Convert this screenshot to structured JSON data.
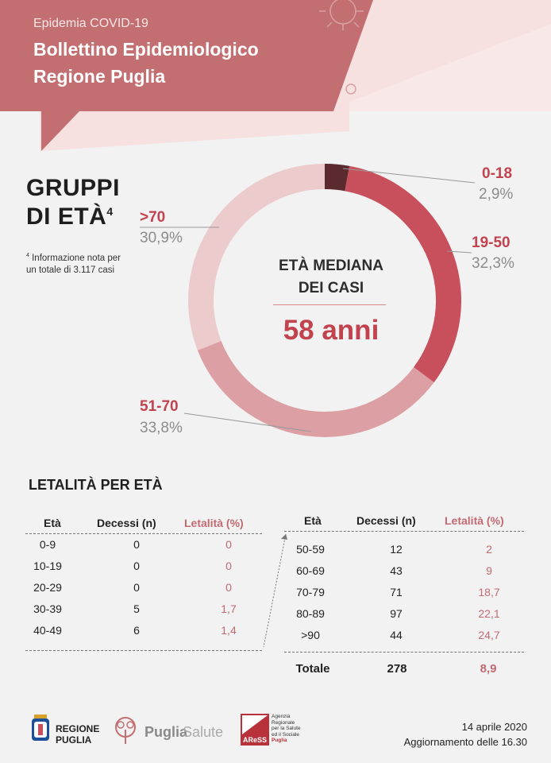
{
  "header": {
    "supertitle": "Epidemia COVID-19",
    "title_line1": "Bollettino Epidemiologico",
    "title_line2": "Regione Puglia"
  },
  "groups_title": {
    "line1": "GRUPPI",
    "line2": "DI ETÀ",
    "footnote_mark": "4"
  },
  "note": {
    "mark": "4",
    "text1": "Informazione nota per",
    "text2": "un totale di  3.117   casi"
  },
  "center": {
    "line1": "ETÀ MEDIANA",
    "line2": "DEI CASI",
    "value": "58 anni"
  },
  "chart_data": {
    "type": "pie",
    "categories": [
      "0-18",
      "19-50",
      "51-70",
      ">70"
    ],
    "values": [
      2.9,
      32.3,
      33.8,
      30.9
    ],
    "labels": [
      "2,9%",
      "32,3%",
      "33,8%",
      "30,9%"
    ],
    "colors": [
      "#5b2a2e",
      "#c8505c",
      "#dca0a4",
      "#eccbcd"
    ]
  },
  "lethality": {
    "title": "LETALITÀ PER ETÀ",
    "headers": [
      "Età",
      "Decessi (n)",
      "Letalità (%)"
    ],
    "left_rows": [
      [
        "0-9",
        "0",
        "0"
      ],
      [
        "10-19",
        "0",
        "0"
      ],
      [
        "20-29",
        "0",
        "0"
      ],
      [
        "30-39",
        "5",
        "1,7"
      ],
      [
        "40-49",
        "6",
        "1,4"
      ]
    ],
    "right_rows": [
      [
        "50-59",
        "12",
        "2"
      ],
      [
        "60-69",
        "43",
        "9"
      ],
      [
        "70-79",
        "71",
        "18,7"
      ],
      [
        "80-89",
        "97",
        "22,1"
      ],
      [
        ">90",
        "44",
        "24,7"
      ]
    ],
    "total": [
      "Totale",
      "278",
      "8,9"
    ]
  },
  "footer": {
    "regione1": "REGIONE",
    "regione2": "PUGLIA",
    "puglia": "Puglia",
    "salute": "Salute",
    "ares_logo": "AReSS",
    "ares_text": [
      "Agenzia",
      "Regionale",
      "per la Salute",
      "ed il Sociale",
      "Puglia"
    ],
    "date": "14 aprile 2020",
    "update": "Aggiornamento delle 16.30"
  }
}
